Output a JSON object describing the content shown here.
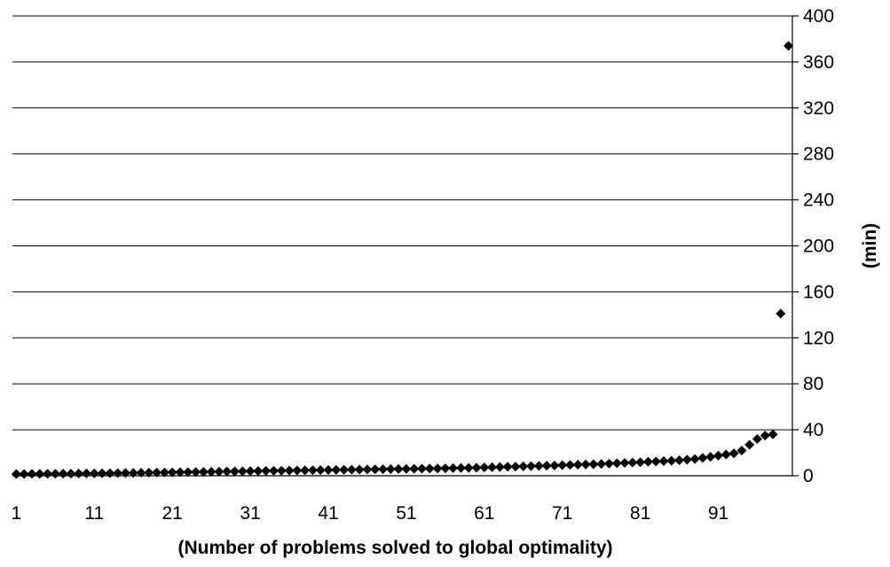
{
  "chart_data": {
    "type": "scatter",
    "title": "",
    "xlabel": "(Number of problems solved to global optimality)",
    "ylabel": "(min)",
    "xlim": [
      1,
      100
    ],
    "ylim": [
      0,
      400
    ],
    "x_tick_labels": [
      "1",
      "11",
      "21",
      "31",
      "41",
      "51",
      "61",
      "71",
      "81",
      "91"
    ],
    "y_tick_labels": [
      "0",
      "40",
      "80",
      "120",
      "160",
      "200",
      "240",
      "280",
      "320",
      "360",
      "400"
    ],
    "y_axis_side": "right",
    "grid": "horizontal",
    "legend": "none",
    "marker": "diamond",
    "marker_color": "#000000",
    "x": [
      1,
      2,
      3,
      4,
      5,
      6,
      7,
      8,
      9,
      10,
      11,
      12,
      13,
      14,
      15,
      16,
      17,
      18,
      19,
      20,
      21,
      22,
      23,
      24,
      25,
      26,
      27,
      28,
      29,
      30,
      31,
      32,
      33,
      34,
      35,
      36,
      37,
      38,
      39,
      40,
      41,
      42,
      43,
      44,
      45,
      46,
      47,
      48,
      49,
      50,
      51,
      52,
      53,
      54,
      55,
      56,
      57,
      58,
      59,
      60,
      61,
      62,
      63,
      64,
      65,
      66,
      67,
      68,
      69,
      70,
      71,
      72,
      73,
      74,
      75,
      76,
      77,
      78,
      79,
      80,
      81,
      82,
      83,
      84,
      85,
      86,
      87,
      88,
      89,
      90,
      91,
      92,
      93,
      94,
      95,
      96,
      97,
      98,
      99,
      100
    ],
    "y": [
      1.5,
      1.5,
      1.6,
      1.6,
      1.7,
      1.7,
      1.8,
      1.8,
      1.9,
      2.0,
      2.0,
      2.1,
      2.2,
      2.3,
      2.4,
      2.5,
      2.6,
      2.7,
      2.8,
      2.9,
      3.0,
      3.1,
      3.2,
      3.3,
      3.4,
      3.5,
      3.6,
      3.7,
      3.8,
      3.9,
      4.0,
      4.1,
      4.2,
      4.3,
      4.4,
      4.5,
      4.6,
      4.7,
      4.8,
      4.9,
      5.0,
      5.1,
      5.2,
      5.3,
      5.4,
      5.5,
      5.6,
      5.7,
      5.8,
      5.9,
      6.0,
      6.1,
      6.2,
      6.3,
      6.4,
      6.5,
      6.6,
      6.7,
      6.8,
      7.0,
      7.2,
      7.4,
      7.6,
      7.8,
      8.0,
      8.2,
      8.4,
      8.6,
      8.8,
      9.0,
      9.2,
      9.4,
      9.6,
      9.8,
      10.0,
      10.3,
      10.6,
      10.9,
      11.2,
      11.5,
      11.8,
      12.1,
      12.4,
      12.7,
      13.0,
      13.5,
      14.0,
      14.5,
      15.5,
      16.5,
      17.5,
      18.5,
      19.5,
      22,
      27,
      32,
      35,
      36,
      141,
      374
    ]
  }
}
